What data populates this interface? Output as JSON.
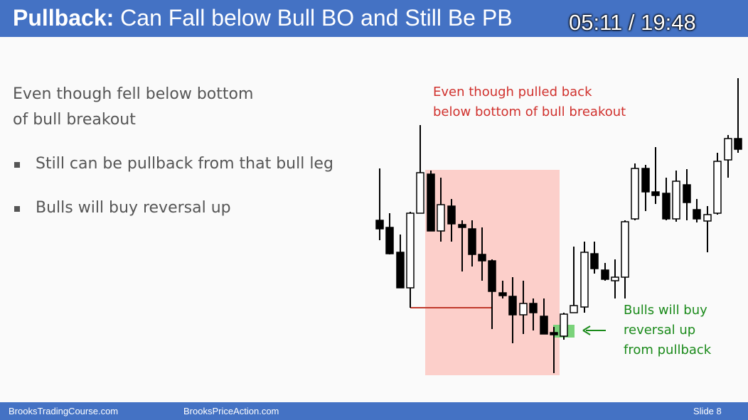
{
  "header": {
    "title_bold": "Pullback:",
    "title_rest": "Can Fall below Bull BO and Still Be PB",
    "timestamp": "05:11 / 19:48"
  },
  "body": {
    "intro": [
      "Even though fell below bottom",
      "of bull breakout"
    ],
    "bullets": [
      "Still can be pullback from that bull leg",
      "Bulls will buy reversal up"
    ]
  },
  "annotations": {
    "red": [
      "Even though pulled back",
      "below bottom of bull breakout"
    ],
    "green": [
      "Bulls will buy",
      "reversal up",
      "from pullback"
    ]
  },
  "footer": {
    "left": "BrooksTradingCourse.com",
    "center": "BrooksPriceAction.com",
    "slide": "Slide  8"
  }
}
